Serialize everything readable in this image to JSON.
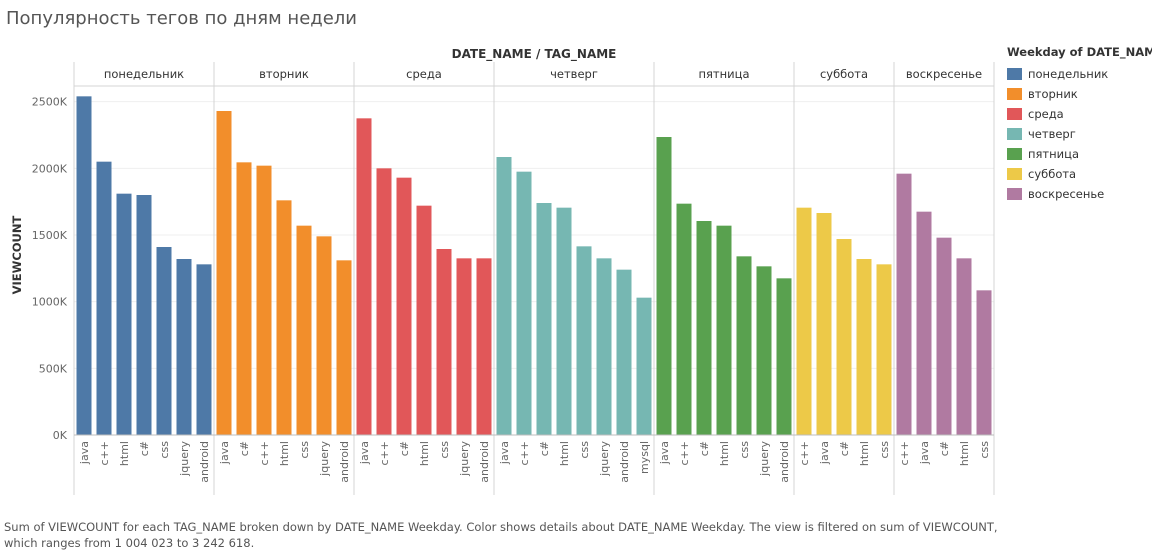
{
  "title": "Популярность тегов по дням недели",
  "caption_lines": [
    "Sum of VIEWCOUNT for each TAG_NAME broken down by DATE_NAME Weekday.  Color shows details about DATE_NAME Weekday. The view is filtered on sum of VIEWCOUNT,",
    "which ranges from 1 004 023 to 3 242 618."
  ],
  "legend": {
    "title": "Weekday of DATE_NAME",
    "items": [
      {
        "label": "понедельник",
        "color": "#4e79a7"
      },
      {
        "label": "вторник",
        "color": "#f28e2b"
      },
      {
        "label": "среда",
        "color": "#e15759"
      },
      {
        "label": "четверг",
        "color": "#76b7b2"
      },
      {
        "label": "пятница",
        "color": "#59a14f"
      },
      {
        "label": "суббота",
        "color": "#edc948"
      },
      {
        "label": "воскресенье",
        "color": "#b07aa1"
      }
    ]
  },
  "chart_data": {
    "type": "bar",
    "column_header": "DATE_NAME / TAG_NAME",
    "ylabel": "VIEWCOUNT",
    "ylim": [
      0,
      2700000
    ],
    "yticks": [
      0,
      500000,
      1000000,
      1500000,
      2000000,
      2500000
    ],
    "ytick_labels": [
      "0K",
      "500K",
      "1000K",
      "1500K",
      "2000K",
      "2500K"
    ],
    "grid": true,
    "legend_position": "right",
    "panels": [
      {
        "day": "понедельник",
        "color": "#4e79a7",
        "categories": [
          "java",
          "c++",
          "html",
          "c#",
          "css",
          "jquery",
          "android"
        ],
        "values": [
          2540000,
          2050000,
          1810000,
          1800000,
          1410000,
          1320000,
          1280000
        ]
      },
      {
        "day": "вторник",
        "color": "#f28e2b",
        "categories": [
          "java",
          "c#",
          "c++",
          "html",
          "css",
          "jquery",
          "android"
        ],
        "values": [
          2430000,
          2045000,
          2020000,
          1760000,
          1570000,
          1490000,
          1310000
        ]
      },
      {
        "day": "среда",
        "color": "#e15759",
        "categories": [
          "java",
          "c++",
          "c#",
          "html",
          "css",
          "jquery",
          "android"
        ],
        "values": [
          2375000,
          2000000,
          1930000,
          1720000,
          1395000,
          1325000,
          1325000
        ]
      },
      {
        "day": "четверг",
        "color": "#76b7b2",
        "categories": [
          "java",
          "c++",
          "c#",
          "html",
          "css",
          "jquery",
          "android",
          "mysql"
        ],
        "values": [
          2085000,
          1975000,
          1740000,
          1705000,
          1415000,
          1325000,
          1240000,
          1030000
        ]
      },
      {
        "day": "пятница",
        "color": "#59a14f",
        "categories": [
          "java",
          "c++",
          "c#",
          "html",
          "css",
          "jquery",
          "android"
        ],
        "values": [
          2235000,
          1735000,
          1605000,
          1570000,
          1340000,
          1265000,
          1175000
        ]
      },
      {
        "day": "суббота",
        "color": "#edc948",
        "categories": [
          "c++",
          "java",
          "c#",
          "html",
          "css"
        ],
        "values": [
          1705000,
          1665000,
          1470000,
          1320000,
          1280000
        ]
      },
      {
        "day": "воскресенье",
        "color": "#b07aa1",
        "categories": [
          "c++",
          "java",
          "c#",
          "html",
          "css"
        ],
        "values": [
          1960000,
          1675000,
          1480000,
          1325000,
          1085000
        ]
      }
    ]
  }
}
